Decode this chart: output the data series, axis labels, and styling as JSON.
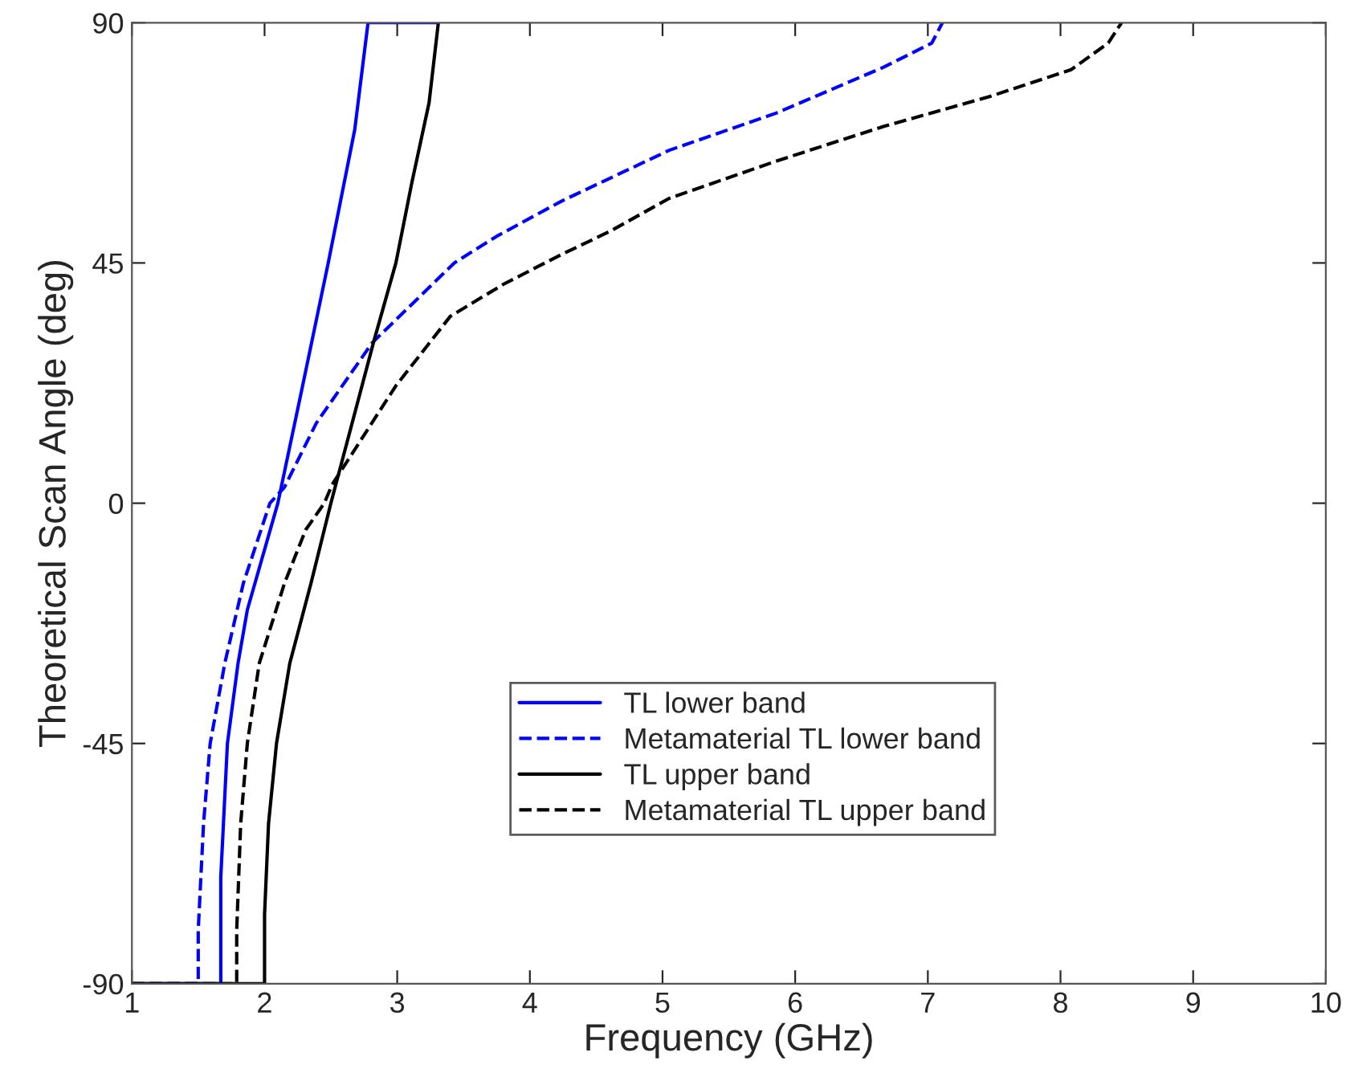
{
  "chart_data": {
    "type": "line",
    "xlabel": "Frequency (GHz)",
    "ylabel": "Theoretical Scan Angle (deg)",
    "xlim": [
      1,
      10
    ],
    "ylim": [
      -90,
      90
    ],
    "xticks": [
      1,
      2,
      3,
      4,
      5,
      6,
      7,
      8,
      9,
      10
    ],
    "yticks": [
      -90,
      -45,
      0,
      45,
      90
    ],
    "grid": false,
    "legend": "bottom",
    "series": [
      {
        "name": "TL lower band",
        "color": "#0000ff",
        "line_style": "solid",
        "x": [
          1,
          1.67,
          1.67,
          1.67,
          1.72,
          1.8,
          1.87,
          2.1,
          2.27,
          2.48,
          2.68,
          2.78,
          3.3
        ],
        "values": [
          -90,
          -90,
          -80,
          -70,
          -45,
          -30,
          -20,
          0,
          20,
          45,
          70,
          90,
          90
        ]
      },
      {
        "name": "Metamaterial TL lower band",
        "color": "#0000ff",
        "line_style": "dashed",
        "x": [
          1,
          1.5,
          1.5,
          1.54,
          1.59,
          1.7,
          1.84,
          2.04,
          2.15,
          2.39,
          2.81,
          3.43,
          3.75,
          4.24,
          5.05,
          5.86,
          6.67,
          7.03,
          7.11
        ],
        "values": [
          -90,
          -90,
          -80,
          -60,
          -45,
          -30,
          -15,
          0,
          3,
          15,
          30,
          45,
          50,
          56.6,
          66.1,
          73.1,
          81.7,
          86.2,
          90
        ]
      },
      {
        "name": "TL upper band",
        "color": "#000000",
        "line_style": "solid",
        "x": [
          1,
          2.0,
          2.0,
          2.03,
          2.09,
          2.19,
          2.35,
          2.45,
          2.5,
          2.82,
          2.99,
          3.11,
          3.24,
          3.31
        ],
        "values": [
          -90,
          -90,
          -77,
          -60,
          -45,
          -30,
          -15,
          -5,
          0,
          30,
          45,
          60,
          75,
          90
        ]
      },
      {
        "name": "Metamaterial TL upper band",
        "color": "#000000",
        "line_style": "dashed",
        "x": [
          1,
          1.79,
          1.79,
          1.82,
          1.87,
          1.96,
          2.15,
          2.31,
          2.45,
          2.51,
          2.99,
          3.4,
          3.8,
          4.24,
          4.61,
          5.05,
          5.86,
          6.67,
          7.47,
          8.08,
          8.36,
          8.46
        ],
        "values": [
          -90,
          -90,
          -80,
          -60,
          -45,
          -30,
          -15,
          -5,
          0,
          3.5,
          22,
          35,
          41,
          46.6,
          51,
          57.1,
          64.1,
          70.6,
          76.2,
          81.2,
          86.2,
          90
        ]
      }
    ]
  }
}
